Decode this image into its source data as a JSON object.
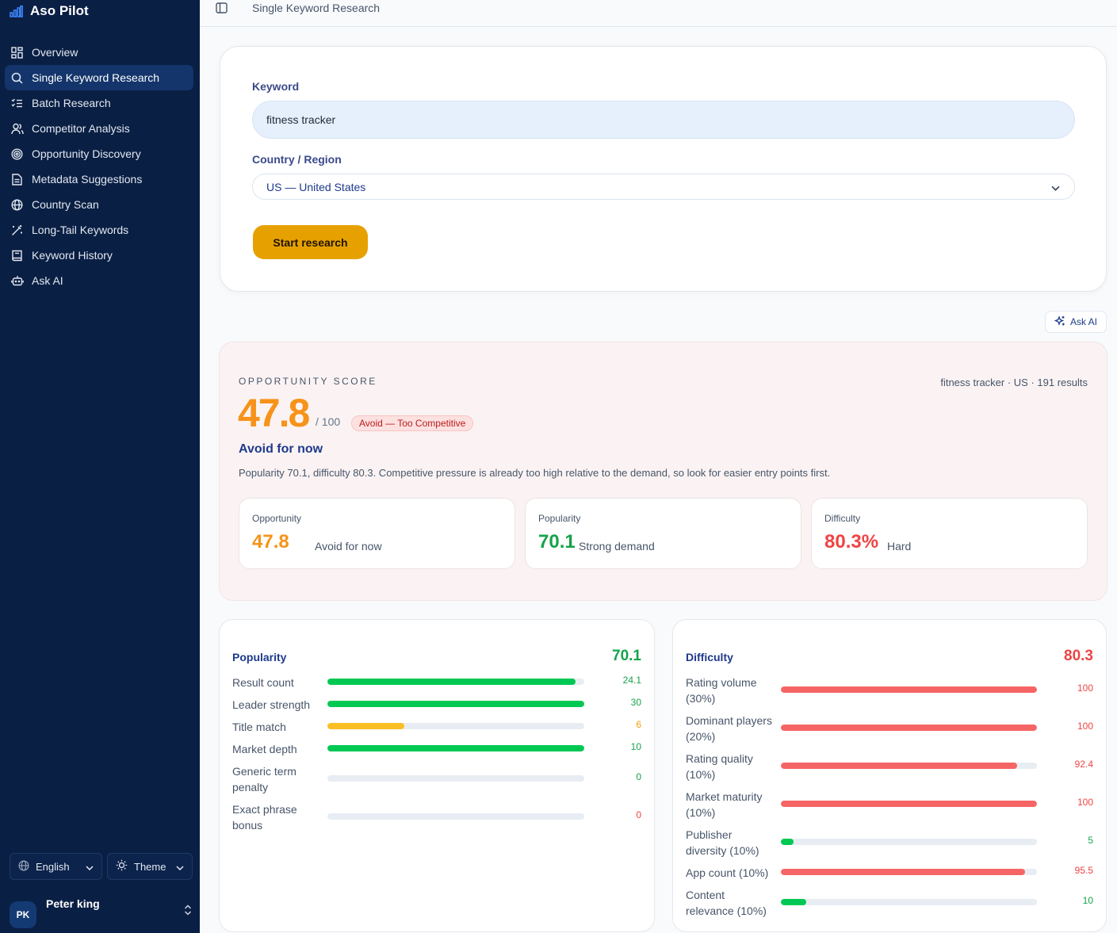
{
  "app": {
    "name": "Aso Pilot"
  },
  "nav": {
    "items": [
      {
        "label": "Overview",
        "icon": "grid-icon",
        "active": false
      },
      {
        "label": "Single Keyword Research",
        "icon": "search-icon",
        "active": true
      },
      {
        "label": "Batch Research",
        "icon": "list-check-icon",
        "active": false
      },
      {
        "label": "Competitor Analysis",
        "icon": "users-icon",
        "active": false
      },
      {
        "label": "Opportunity Discovery",
        "icon": "target-icon",
        "active": false
      },
      {
        "label": "Metadata Suggestions",
        "icon": "document-icon",
        "active": false
      },
      {
        "label": "Country Scan",
        "icon": "globe-icon",
        "active": false
      },
      {
        "label": "Long-Tail Keywords",
        "icon": "wand-icon",
        "active": false
      },
      {
        "label": "Keyword History",
        "icon": "book-icon",
        "active": false
      },
      {
        "label": "Ask AI",
        "icon": "bot-icon",
        "active": false
      }
    ]
  },
  "sidebar_footer": {
    "language": "English",
    "theme": "Theme",
    "user_initials": "PK",
    "user_name": "Peter king"
  },
  "header": {
    "breadcrumb": "Single Keyword Research"
  },
  "form": {
    "keyword_label": "Keyword",
    "keyword_value": "fitness tracker",
    "country_label": "Country / Region",
    "country_value": "US — United States",
    "submit_label": "Start research"
  },
  "ask_ai_label": "Ask AI",
  "result": {
    "section_label": "OPPORTUNITY SCORE",
    "meta": "fitness tracker · US · 191 results",
    "score": "47.8",
    "out_of": "/ 100",
    "badge": "Avoid — Too Competitive",
    "verdict": "Avoid for now",
    "summary": "Popularity 70.1, difficulty 80.3. Competitive pressure is already too high relative to the demand, so look for easier entry points first.",
    "metrics": [
      {
        "label": "Opportunity",
        "value": "47.8",
        "sub": "Avoid for now",
        "color": "#f7931a"
      },
      {
        "label": "Popularity",
        "value": "70.1",
        "sub": "Strong demand",
        "color": "#16a34a"
      },
      {
        "label": "Difficulty",
        "value": "80.3%",
        "sub": "Hard",
        "color": "#ef4444"
      }
    ]
  },
  "popularity": {
    "title": "Popularity",
    "total": "70.1",
    "total_color": "#16a34a",
    "rows": [
      {
        "label": "Result count",
        "value": "24.1",
        "fraction": 0.965,
        "color": "#00c853",
        "value_color": "#16a34a"
      },
      {
        "label": "Leader strength",
        "value": "30",
        "fraction": 1.0,
        "color": "#00c853",
        "value_color": "#16a34a"
      },
      {
        "label": "Title match",
        "value": "6",
        "fraction": 0.3,
        "color": "#fbbf24",
        "value_color": "#f59e0b"
      },
      {
        "label": "Market depth",
        "value": "10",
        "fraction": 1.0,
        "color": "#00c853",
        "value_color": "#16a34a"
      },
      {
        "label": "Generic term penalty",
        "value": "0",
        "fraction": 0,
        "color": "#00c853",
        "value_color": "#16a34a"
      },
      {
        "label": "Exact phrase bonus",
        "value": "0",
        "fraction": 0,
        "color": "#ef4444",
        "value_color": "#ef4444"
      }
    ]
  },
  "difficulty": {
    "title": "Difficulty",
    "total": "80.3",
    "total_color": "#ef4444",
    "rows": [
      {
        "label": "Rating volume (30%)",
        "value": "100",
        "fraction": 1.0,
        "color": "#f66565",
        "value_color": "#ef4444"
      },
      {
        "label": "Dominant players (20%)",
        "value": "100",
        "fraction": 1.0,
        "color": "#f66565",
        "value_color": "#ef4444"
      },
      {
        "label": "Rating quality (10%)",
        "value": "92.4",
        "fraction": 0.924,
        "color": "#f66565",
        "value_color": "#ef4444"
      },
      {
        "label": "Market maturity (10%)",
        "value": "100",
        "fraction": 1.0,
        "color": "#f66565",
        "value_color": "#ef4444"
      },
      {
        "label": "Publisher diversity (10%)",
        "value": "5",
        "fraction": 0.05,
        "color": "#00c853",
        "value_color": "#16a34a"
      },
      {
        "label": "App count (10%)",
        "value": "95.5",
        "fraction": 0.955,
        "color": "#f66565",
        "value_color": "#ef4444"
      },
      {
        "label": "Content relevance (10%)",
        "value": "10",
        "fraction": 0.1,
        "color": "#00c853",
        "value_color": "#16a34a"
      }
    ]
  }
}
